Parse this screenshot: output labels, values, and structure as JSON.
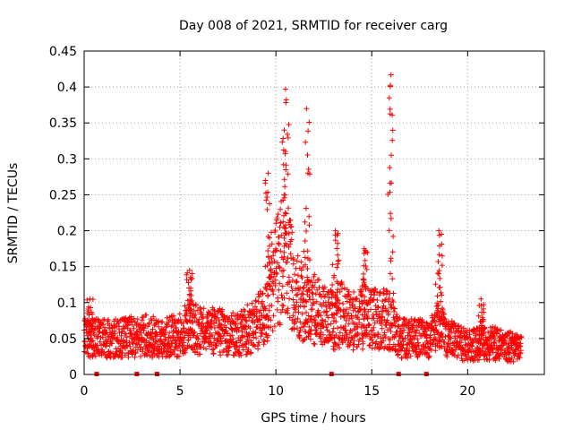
{
  "chart_data": {
    "type": "scatter",
    "title": "Day 008 of 2021, SRMTID for receiver carg",
    "xlabel": "GPS time / hours",
    "ylabel": "SRMTID / TECUs",
    "xlim": [
      0,
      24
    ],
    "ylim": [
      0,
      0.45
    ],
    "xticks": [
      0,
      5,
      10,
      15,
      20
    ],
    "xtick_labels": [
      "0",
      "5",
      "10",
      "15",
      "20"
    ],
    "yticks": [
      0,
      0.05,
      0.1,
      0.15,
      0.2,
      0.25,
      0.3,
      0.35,
      0.4,
      0.45
    ],
    "ytick_labels": [
      "0",
      "0.05",
      "0.1",
      "0.15",
      "0.2",
      "0.25",
      "0.3",
      "0.35",
      "0.4",
      "0.45"
    ],
    "grid": true,
    "series_color": "#ff0000",
    "marker": "plus",
    "profile": {
      "x": [
        0,
        1,
        2,
        3,
        4,
        5,
        5.5,
        6,
        7,
        8,
        9,
        9.5,
        10,
        10.5,
        11,
        11.5,
        12,
        12.5,
        13,
        13.5,
        14,
        15,
        16,
        16.5,
        17,
        18,
        18.5,
        19,
        20,
        21,
        22,
        22.8
      ],
      "y": [
        0.05,
        0.05,
        0.05,
        0.055,
        0.05,
        0.055,
        0.07,
        0.06,
        0.06,
        0.055,
        0.07,
        0.09,
        0.14,
        0.17,
        0.11,
        0.1,
        0.09,
        0.08,
        0.075,
        0.085,
        0.075,
        0.08,
        0.075,
        0.05,
        0.05,
        0.05,
        0.065,
        0.05,
        0.04,
        0.045,
        0.04,
        0.035
      ]
    },
    "spikes": [
      {
        "x": 0.3,
        "y": 0.105
      },
      {
        "x": 5.5,
        "y": 0.145
      },
      {
        "x": 9.6,
        "y": 0.28
      },
      {
        "x": 10.5,
        "y": 0.397
      },
      {
        "x": 11.6,
        "y": 0.37
      },
      {
        "x": 13.1,
        "y": 0.2
      },
      {
        "x": 14.6,
        "y": 0.175
      },
      {
        "x": 16.0,
        "y": 0.417
      },
      {
        "x": 18.5,
        "y": 0.2
      },
      {
        "x": 20.7,
        "y": 0.105
      }
    ],
    "ground_markers_x": [
      0.65,
      2.75,
      3.8,
      12.9,
      16.4,
      17.85
    ]
  }
}
